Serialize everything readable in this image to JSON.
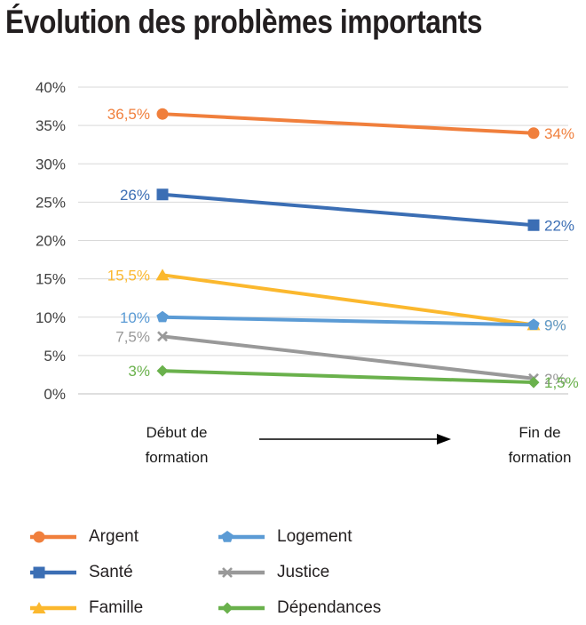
{
  "title": "Évolution des problèmes importants",
  "chart_data": {
    "type": "line",
    "x_categories": [
      {
        "lines": [
          "Début de",
          "formation"
        ]
      },
      {
        "lines": [
          "Fin de",
          "formation"
        ]
      }
    ],
    "ylim": [
      0,
      40
    ],
    "y_ticks": [
      0,
      5,
      10,
      15,
      20,
      25,
      30,
      35,
      40
    ],
    "y_tick_labels": [
      "0%",
      "5%",
      "10%",
      "15%",
      "20%",
      "25%",
      "30%",
      "35%",
      "40%"
    ],
    "grid": true,
    "series": [
      {
        "name": "Argent",
        "color": "#f07f3c",
        "marker": "circle",
        "values": [
          36.5,
          34
        ],
        "labels": [
          "36,5%",
          "34%"
        ]
      },
      {
        "name": "Santé",
        "color": "#3b6eb4",
        "marker": "square",
        "values": [
          26,
          22
        ],
        "labels": [
          "26%",
          "22%"
        ]
      },
      {
        "name": "Famille",
        "color": "#fbb82e",
        "marker": "triangle",
        "values": [
          15.5,
          9
        ],
        "labels": [
          "15,5%",
          "9%"
        ]
      },
      {
        "name": "Logement",
        "color": "#5b9bd5",
        "marker": "pentagon",
        "values": [
          10,
          9
        ],
        "labels": [
          "10%",
          "9%"
        ]
      },
      {
        "name": "Justice",
        "color": "#999999",
        "marker": "x",
        "values": [
          7.5,
          2
        ],
        "labels": [
          "7,5%",
          "2%"
        ]
      },
      {
        "name": "Dépendances",
        "color": "#6ab14c",
        "marker": "diamond",
        "values": [
          3,
          1.5
        ],
        "labels": [
          "3%",
          "1,5%"
        ]
      }
    ],
    "legend_position": "bottom"
  }
}
